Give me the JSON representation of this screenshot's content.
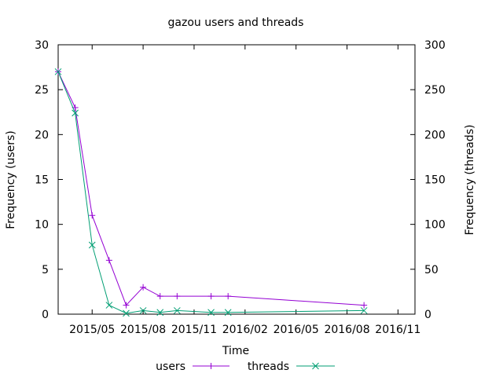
{
  "chart_data": {
    "type": "line",
    "title": "gazou users and threads",
    "xlabel": "Time",
    "ylabel_left": "Frequency (users)",
    "ylabel_right": "Frequency (threads)",
    "x_ticks": [
      "2015/05",
      "2015/08",
      "2015/11",
      "2016/02",
      "2016/05",
      "2016/08",
      "2016/11"
    ],
    "y_left_ticks": [
      "0",
      "5",
      "10",
      "15",
      "20",
      "25",
      "30"
    ],
    "y_right_ticks": [
      "0",
      "50",
      "100",
      "150",
      "200",
      "250",
      "300"
    ],
    "y_left_range": [
      0,
      30
    ],
    "y_right_range": [
      0,
      300
    ],
    "x_range_months": [
      0,
      21
    ],
    "x_tick_months": [
      2,
      5,
      8,
      11,
      14,
      17,
      20
    ],
    "legend_position": "bottom",
    "series": [
      {
        "name": "users",
        "axis": "left",
        "color": "#9400d3",
        "marker": "plus",
        "points": [
          {
            "x": 0.0,
            "y": 27
          },
          {
            "x": 1.0,
            "y": 23
          },
          {
            "x": 2.0,
            "y": 11
          },
          {
            "x": 3.0,
            "y": 6
          },
          {
            "x": 4.0,
            "y": 1
          },
          {
            "x": 5.0,
            "y": 3
          },
          {
            "x": 6.0,
            "y": 2
          },
          {
            "x": 7.0,
            "y": 2
          },
          {
            "x": 9.0,
            "y": 2
          },
          {
            "x": 10.0,
            "y": 2
          },
          {
            "x": 18.0,
            "y": 1
          }
        ]
      },
      {
        "name": "threads",
        "axis": "right",
        "color": "#009e73",
        "marker": "cross",
        "points": [
          {
            "x": 0.0,
            "y": 270
          },
          {
            "x": 1.0,
            "y": 224
          },
          {
            "x": 2.0,
            "y": 77
          },
          {
            "x": 3.0,
            "y": 10
          },
          {
            "x": 4.0,
            "y": 1
          },
          {
            "x": 5.0,
            "y": 4
          },
          {
            "x": 6.0,
            "y": 2
          },
          {
            "x": 7.0,
            "y": 4
          },
          {
            "x": 9.0,
            "y": 2
          },
          {
            "x": 10.0,
            "y": 2
          },
          {
            "x": 18.0,
            "y": 4
          }
        ]
      }
    ]
  }
}
